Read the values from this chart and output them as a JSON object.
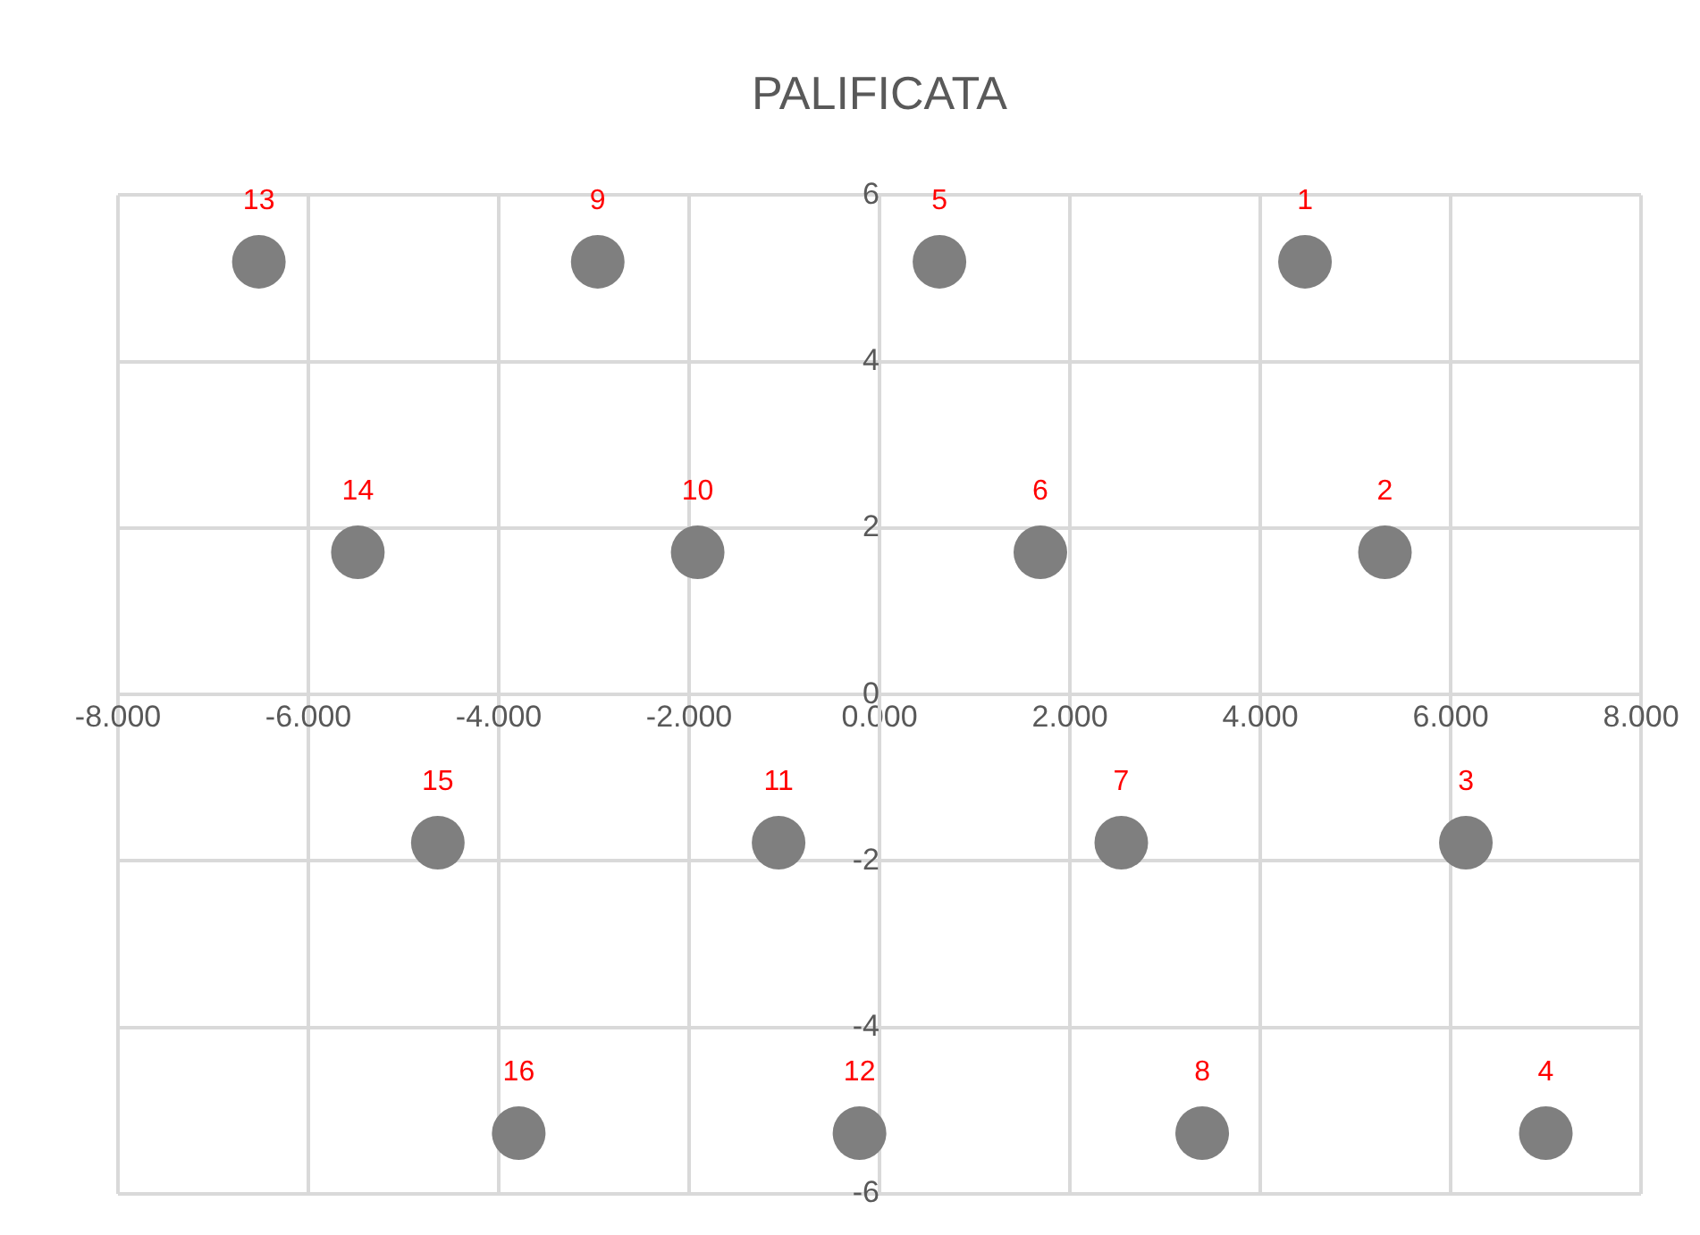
{
  "chart_data": {
    "type": "scatter",
    "title": "PALIFICATA",
    "marker": "circle",
    "grid": true,
    "legend": false,
    "xlim": [
      -8,
      8
    ],
    "xticks": [
      {
        "value": -8,
        "label": "-8.000"
      },
      {
        "value": -6,
        "label": "-6.000"
      },
      {
        "value": -4,
        "label": "-4.000"
      },
      {
        "value": -2,
        "label": "-2.000"
      },
      {
        "value": 0,
        "label": "0.000"
      },
      {
        "value": 2,
        "label": "2.000"
      },
      {
        "value": 4,
        "label": "4.000"
      },
      {
        "value": 6,
        "label": "6.000"
      },
      {
        "value": 8,
        "label": "8.000"
      }
    ],
    "ylim": [
      -6,
      6
    ],
    "yticks": [
      -6,
      -4,
      -2,
      0,
      2,
      4,
      6
    ],
    "series": [
      {
        "color": "#7f7f7f",
        "x": [
          4.47,
          5.31,
          6.16,
          7.0,
          0.63,
          1.69,
          2.54,
          3.39,
          -2.96,
          -1.91,
          -1.06,
          -0.21,
          -6.52,
          -5.48,
          -4.64,
          -3.79
        ],
        "values": [
          5.2,
          1.71,
          -1.78,
          -5.27,
          5.2,
          1.71,
          -1.78,
          -5.27,
          5.2,
          1.71,
          -1.78,
          -5.27,
          5.2,
          1.71,
          -1.78,
          -5.27
        ]
      }
    ],
    "annotations": [
      {
        "text": "1",
        "x": 4.47,
        "y": 5.2
      },
      {
        "text": "2",
        "x": 5.31,
        "y": 1.71
      },
      {
        "text": "3",
        "x": 6.16,
        "y": -1.78
      },
      {
        "text": "4",
        "x": 7.0,
        "y": -5.27
      },
      {
        "text": "5",
        "x": 0.63,
        "y": 5.2
      },
      {
        "text": "6",
        "x": 1.69,
        "y": 1.71
      },
      {
        "text": "7",
        "x": 2.54,
        "y": -1.78
      },
      {
        "text": "8",
        "x": 3.39,
        "y": -5.27
      },
      {
        "text": "9",
        "x": -2.96,
        "y": 5.2
      },
      {
        "text": "10",
        "x": -1.91,
        "y": 1.71
      },
      {
        "text": "11",
        "x": -1.06,
        "y": -1.78
      },
      {
        "text": "12",
        "x": -0.21,
        "y": -5.27
      },
      {
        "text": "13",
        "x": -6.52,
        "y": 5.2
      },
      {
        "text": "14",
        "x": -5.48,
        "y": 1.71
      },
      {
        "text": "15",
        "x": -4.64,
        "y": -1.78
      },
      {
        "text": "16",
        "x": -3.79,
        "y": -5.27
      }
    ]
  }
}
